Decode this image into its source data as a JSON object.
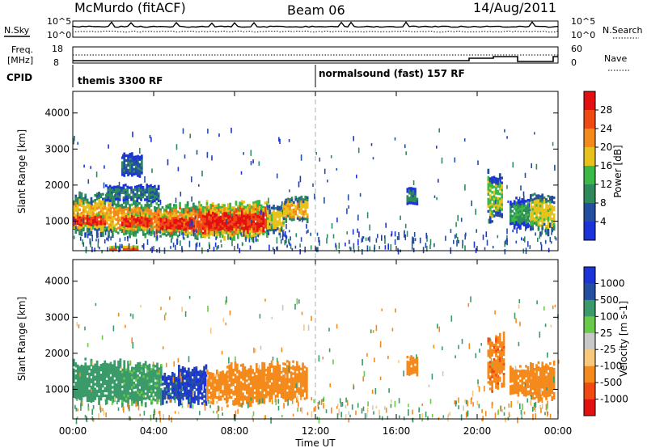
{
  "header": {
    "site": "McMurdo (fitACF)",
    "beam": "Beam 06",
    "date": "14/Aug/2011"
  },
  "top_strip": {
    "left_label": "N.Sky",
    "right_label": "N.Search",
    "left_ticks": [
      "10^5",
      "10^0"
    ],
    "right_ticks": [
      "10^5",
      "10^0"
    ]
  },
  "freq_strip": {
    "left_label_1": "Freq.",
    "left_label_2": "[MHz]",
    "right_label": "Nave",
    "left_ticks": [
      "18",
      "8"
    ],
    "right_ticks": [
      "60",
      "0"
    ]
  },
  "cpid": {
    "label": "CPID",
    "segments": [
      {
        "start_hour": 0,
        "text": "themis 3300 RF"
      },
      {
        "start_hour": 12,
        "text": "normalsound (fast) 157 RF"
      }
    ]
  },
  "colors": {
    "power_scale": [
      "#1c33d9",
      "#244fa0",
      "#2e8a5a",
      "#3cb846",
      "#e8c21c",
      "#f58a1c",
      "#f04a14",
      "#e21010"
    ],
    "velocity_scale": [
      "#e21010",
      "#f04a14",
      "#f58a1c",
      "#f8c97a",
      "#c8c8c8",
      "#6ac94a",
      "#3a9a6a",
      "#244fa0",
      "#1c33d9"
    ]
  },
  "chart_data": [
    {
      "type": "heatmap",
      "title": "Power",
      "xlabel": "",
      "ylabel": "Slant Range [km]",
      "xlim": [
        0,
        24
      ],
      "ylim": [
        180,
        4600
      ],
      "yticks": [
        1000,
        2000,
        3000,
        4000
      ],
      "colorbar": {
        "label": "Power [dB]",
        "ticks": [
          "4",
          "8",
          "12",
          "16",
          "20",
          "24",
          "28"
        ],
        "min": 0,
        "max": 32
      },
      "regions": [
        {
          "t0": 0.0,
          "t1": 2.0,
          "r0": 700,
          "r1": 1700,
          "value": 22
        },
        {
          "t0": 0.0,
          "t1": 1.6,
          "r0": 850,
          "r1": 1200,
          "value": 30
        },
        {
          "t0": 2.0,
          "t1": 4.0,
          "r0": 650,
          "r1": 1500,
          "value": 24
        },
        {
          "t0": 2.4,
          "t1": 3.9,
          "r0": 800,
          "r1": 1200,
          "value": 30
        },
        {
          "t0": 4.0,
          "t1": 6.2,
          "r0": 600,
          "r1": 1450,
          "value": 25
        },
        {
          "t0": 4.3,
          "t1": 6.0,
          "r0": 700,
          "r1": 1200,
          "value": 31
        },
        {
          "t0": 6.2,
          "t1": 9.6,
          "r0": 600,
          "r1": 1500,
          "value": 28
        },
        {
          "t0": 6.4,
          "t1": 9.4,
          "r0": 650,
          "r1": 1350,
          "value": 31
        },
        {
          "t0": 9.6,
          "t1": 10.4,
          "r0": 700,
          "r1": 1400,
          "value": 20
        },
        {
          "t0": 10.4,
          "t1": 11.6,
          "r0": 1050,
          "r1": 1700,
          "value": 22
        },
        {
          "t0": 1.6,
          "t1": 4.2,
          "r0": 1600,
          "r1": 2000,
          "value": 11
        },
        {
          "t0": 2.4,
          "t1": 3.4,
          "r0": 2300,
          "r1": 2850,
          "value": 10
        },
        {
          "t0": 1.8,
          "t1": 3.2,
          "r0": 200,
          "r1": 320,
          "value": 29
        },
        {
          "t0": 16.5,
          "t1": 17.0,
          "r0": 1500,
          "r1": 1900,
          "value": 12
        },
        {
          "t0": 20.5,
          "t1": 21.2,
          "r0": 1100,
          "r1": 2350,
          "value": 18
        },
        {
          "t0": 21.6,
          "t1": 22.6,
          "r0": 900,
          "r1": 1600,
          "value": 14
        },
        {
          "t0": 22.6,
          "t1": 23.8,
          "r0": 750,
          "r1": 1700,
          "value": 20
        }
      ]
    },
    {
      "type": "heatmap",
      "title": "Velocity",
      "xlabel": "Time UT",
      "ylabel": "Slant Range [km]",
      "xlim": [
        0,
        24
      ],
      "ylim": [
        180,
        4600
      ],
      "xticks": [
        "00:00",
        "04:00",
        "08:00",
        "12:00",
        "16:00",
        "20:00",
        "00:00"
      ],
      "yticks": [
        1000,
        2000,
        3000,
        4000
      ],
      "colorbar": {
        "label": "Velocity [m s-1]",
        "ticks": [
          "1000",
          "500",
          "100",
          "25",
          "-25",
          "-100",
          "-500",
          "-1000"
        ]
      },
      "regions": [
        {
          "t0": 0.0,
          "t1": 2.4,
          "r0": 700,
          "r1": 1750,
          "value": 200
        },
        {
          "t0": 2.4,
          "t1": 4.4,
          "r0": 650,
          "r1": 1700,
          "value": 150
        },
        {
          "t0": 4.4,
          "t1": 5.2,
          "r0": 700,
          "r1": 1400,
          "value": 800
        },
        {
          "t0": 5.2,
          "t1": 6.6,
          "r0": 650,
          "r1": 1600,
          "value": 1100
        },
        {
          "t0": 6.6,
          "t1": 7.6,
          "r0": 700,
          "r1": 1500,
          "value": -150
        },
        {
          "t0": 7.6,
          "t1": 9.6,
          "r0": 650,
          "r1": 1650,
          "value": -300
        },
        {
          "t0": 9.6,
          "t1": 11.6,
          "r0": 800,
          "r1": 1700,
          "value": -200
        },
        {
          "t0": 16.5,
          "t1": 17.0,
          "r0": 1450,
          "r1": 1900,
          "value": -300
        },
        {
          "t0": 20.5,
          "t1": 21.3,
          "r0": 1100,
          "r1": 2450,
          "value": -400
        },
        {
          "t0": 21.6,
          "t1": 22.6,
          "r0": 850,
          "r1": 1600,
          "value": -300
        },
        {
          "t0": 22.6,
          "t1": 23.8,
          "r0": 750,
          "r1": 1700,
          "value": -250
        }
      ]
    }
  ]
}
